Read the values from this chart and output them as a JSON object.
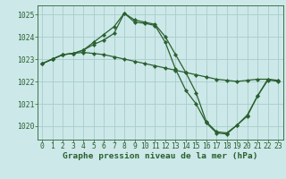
{
  "background_color": "#cce8e8",
  "grid_color": "#aacccc",
  "line_color": "#2a6030",
  "marker": "D",
  "markersize": 2.2,
  "linewidth": 0.9,
  "title": "Graphe pression niveau de la mer (hPa)",
  "title_fontsize": 6.8,
  "tick_fontsize": 5.8,
  "ylim": [
    1019.4,
    1025.4
  ],
  "yticks": [
    1020,
    1021,
    1022,
    1023,
    1024,
    1025
  ],
  "xlim": [
    -0.5,
    23.5
  ],
  "xticks": [
    0,
    1,
    2,
    3,
    4,
    5,
    6,
    7,
    8,
    9,
    10,
    11,
    12,
    13,
    14,
    15,
    16,
    17,
    18,
    19,
    20,
    21,
    22,
    23
  ],
  "series": [
    {
      "x": [
        0,
        1,
        2,
        3,
        4,
        5,
        6,
        7,
        8,
        9,
        10,
        11,
        12,
        13,
        14,
        15,
        16,
        17,
        18,
        19,
        20,
        21,
        22,
        23
      ],
      "y": [
        1022.8,
        1023.0,
        1023.2,
        1023.25,
        1023.3,
        1023.25,
        1023.2,
        1023.1,
        1023.0,
        1022.9,
        1022.8,
        1022.7,
        1022.6,
        1022.5,
        1022.4,
        1022.3,
        1022.2,
        1022.1,
        1022.05,
        1022.0,
        1022.05,
        1022.1,
        1022.1,
        1022.0
      ]
    },
    {
      "x": [
        0,
        1,
        2,
        3,
        4,
        5,
        6,
        7,
        8,
        9,
        10,
        11,
        12,
        13,
        14,
        15,
        16,
        17,
        18,
        19,
        20,
        21,
        22,
        23
      ],
      "y": [
        1022.8,
        1023.0,
        1023.2,
        1023.25,
        1023.4,
        1023.75,
        1024.1,
        1024.45,
        1025.05,
        1024.75,
        1024.65,
        1024.55,
        1024.0,
        1023.2,
        1022.4,
        1021.5,
        1020.2,
        1019.75,
        1019.7,
        1020.05,
        1020.5,
        1021.35,
        1022.1,
        1022.05
      ]
    },
    {
      "x": [
        0,
        1,
        2,
        3,
        4,
        5,
        6,
        7,
        8,
        9,
        10,
        11,
        12,
        13,
        14,
        15,
        16,
        17,
        18,
        19,
        20,
        21,
        22,
        23
      ],
      "y": [
        1022.8,
        1023.0,
        1023.2,
        1023.25,
        1023.4,
        1023.65,
        1023.85,
        1024.15,
        1025.05,
        1024.65,
        1024.6,
        1024.5,
        1023.75,
        1022.55,
        1021.6,
        1021.0,
        1020.15,
        1019.7,
        1019.65,
        1020.05,
        1020.45,
        1021.35,
        1022.05,
        1022.05
      ]
    }
  ]
}
